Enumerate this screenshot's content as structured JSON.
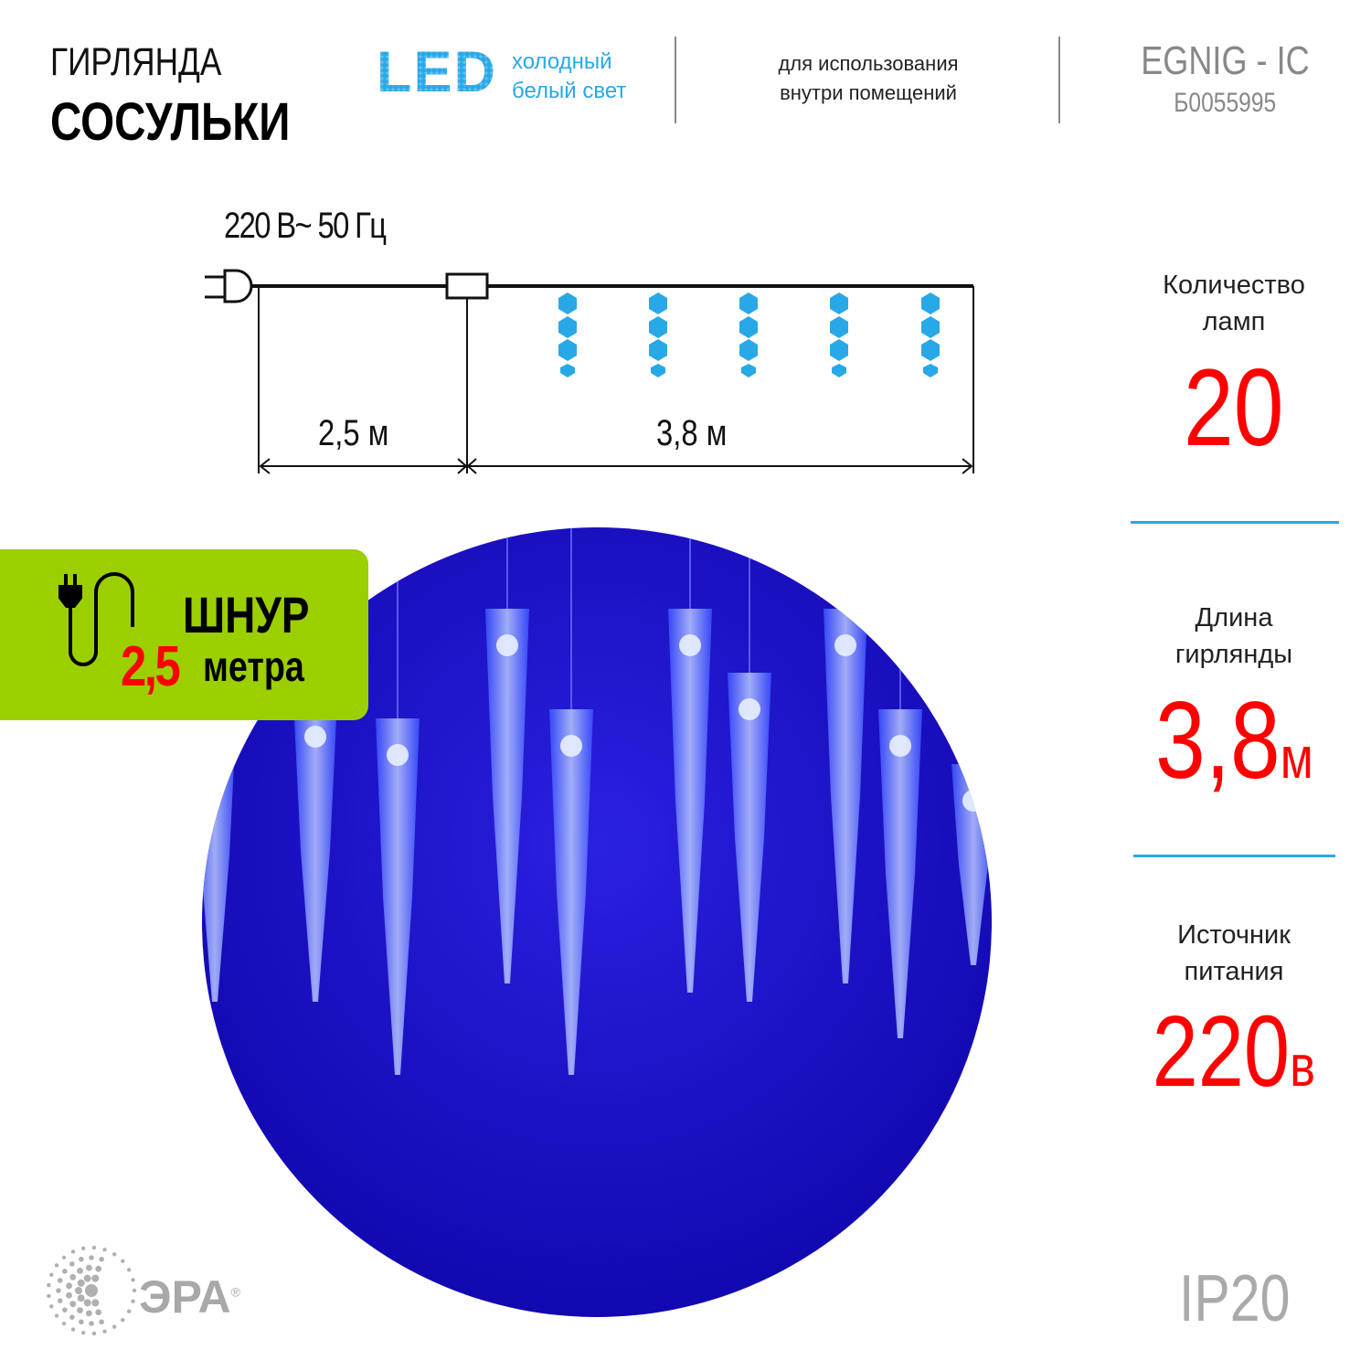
{
  "header": {
    "title_line1": "ГИРЛЯНДА",
    "title_line2": "СОСУЛЬКИ",
    "led_label": "LED",
    "light_line1": "холодный",
    "light_line2": "белый свет",
    "usage_line1": "для использования",
    "usage_line2": "внутри помещений",
    "model": "EGNIG - IC",
    "sku": "Б0055995"
  },
  "diagram": {
    "power": "220 В~ 50 Гц",
    "cord_length": "2,5 м",
    "garland_length": "3,8 м",
    "icicle_count_shown": 5
  },
  "specs": [
    {
      "label_line1": "Количество",
      "label_line2": "ламп",
      "value": "20",
      "unit": ""
    },
    {
      "label_line1": "Длина",
      "label_line2": "гирлянды",
      "value": "3,8",
      "unit": "м"
    },
    {
      "label_line1": "Источник",
      "label_line2": "питания",
      "value": "220",
      "unit": "в"
    }
  ],
  "badge": {
    "word": "ШНУР",
    "number": "2,5",
    "unit": "метра"
  },
  "brand": {
    "name": "ЭРА",
    "registered": "®"
  },
  "rating": "IP20",
  "colors": {
    "accent_blue": "#29a8e8",
    "red": "#ff0000",
    "badge_green": "#9ccf00",
    "photo_blue": "#1a14c8"
  }
}
